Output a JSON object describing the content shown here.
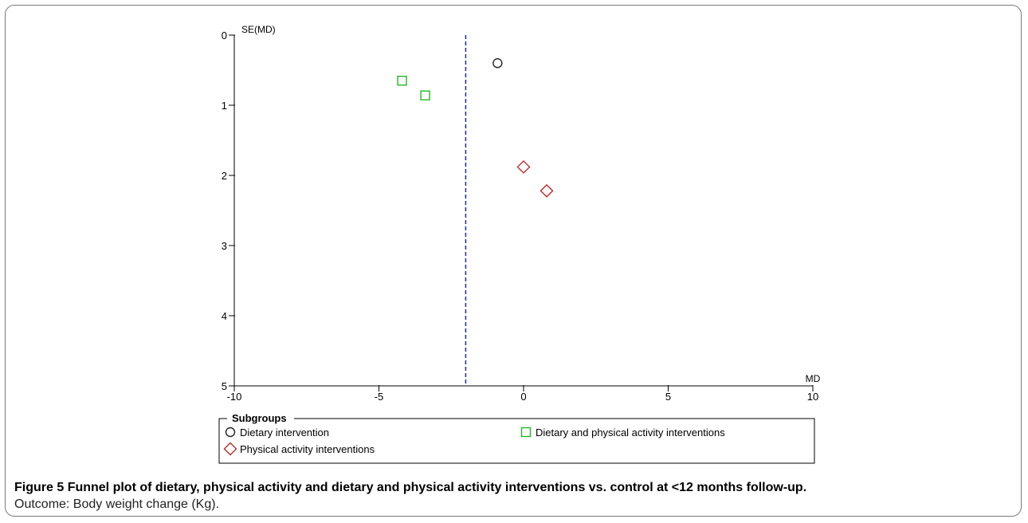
{
  "chart_data": {
    "type": "scatter",
    "title": "",
    "xlabel": "MD",
    "ylabel": "SE(MD)",
    "xlim": [
      -10,
      10
    ],
    "ylim": [
      0,
      5
    ],
    "y_reversed": true,
    "x_ticks": [
      "-10",
      "-5",
      "0",
      "5",
      "10"
    ],
    "y_ticks": [
      "0",
      "1",
      "2",
      "3",
      "4",
      "5"
    ],
    "reference_line": {
      "x": -2.0,
      "style": "dashed",
      "color": "#1f2a9a"
    },
    "grid": false,
    "legend": {
      "title": "Subgroups",
      "placement": "bottom",
      "entries": [
        {
          "key": "dietary",
          "label": "Dietary intervention",
          "marker": "circle",
          "color": "#222222"
        },
        {
          "key": "combined",
          "label": "Dietary and physical activity interventions",
          "marker": "square",
          "color": "#22b822"
        },
        {
          "key": "physical",
          "label": "Physical activity interventions",
          "marker": "diamond",
          "color": "#c0282a"
        }
      ]
    },
    "series": [
      {
        "name": "Dietary intervention",
        "marker": "circle",
        "color": "#222222",
        "points": [
          {
            "x": -0.9,
            "y": 0.4
          }
        ]
      },
      {
        "name": "Dietary and physical activity interventions",
        "marker": "square",
        "color": "#22b822",
        "points": [
          {
            "x": -4.2,
            "y": 0.65
          },
          {
            "x": -3.4,
            "y": 0.86
          }
        ]
      },
      {
        "name": "Physical activity interventions",
        "marker": "diamond",
        "color": "#c0282a",
        "points": [
          {
            "x": 0.0,
            "y": 1.88
          },
          {
            "x": 0.8,
            "y": 2.22
          }
        ]
      }
    ]
  },
  "caption": {
    "label": "Figure 5",
    "title": "Funnel plot of dietary, physical activity and dietary and physical activity interventions vs. control at <12 months follow-up.",
    "subtitle": "Outcome: Body weight change (Kg)."
  }
}
